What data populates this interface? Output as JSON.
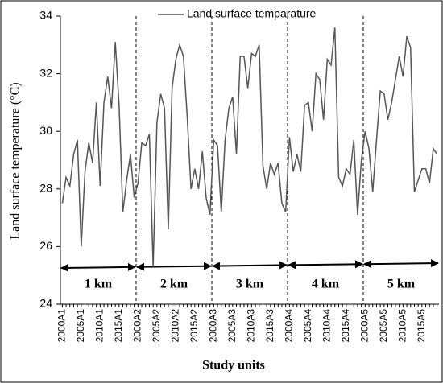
{
  "chart_data": {
    "type": "line",
    "x_label": "Study units",
    "y_label": "Land surface temperature (°C)",
    "categories": [
      "2000A1",
      null,
      null,
      null,
      null,
      "2005A1",
      null,
      null,
      null,
      null,
      "2010A1",
      null,
      null,
      null,
      null,
      "2015A1",
      null,
      null,
      null,
      null,
      "2000A2",
      null,
      null,
      null,
      null,
      "2005A2",
      null,
      null,
      null,
      null,
      "2010A2",
      null,
      null,
      null,
      null,
      "2015A2",
      null,
      null,
      null,
      null,
      "2000A3",
      null,
      null,
      null,
      null,
      "2005A3",
      null,
      null,
      null,
      null,
      "2010A3",
      null,
      null,
      null,
      null,
      "2015A3",
      null,
      null,
      null,
      null,
      "2000A4",
      null,
      null,
      null,
      null,
      "2005A4",
      null,
      null,
      null,
      null,
      "2010A4",
      null,
      null,
      null,
      null,
      "2015A4",
      null,
      null,
      null,
      null,
      "2000A5",
      null,
      null,
      null,
      null,
      "2005A5",
      null,
      null,
      null,
      null,
      "2010A5",
      null,
      null,
      null,
      null,
      "2015A5",
      null,
      null,
      null,
      null
    ],
    "series": [
      {
        "name": "Land surface temparature",
        "color": "#555555",
        "values": [
          27.5,
          28.4,
          28.1,
          29.2,
          29.7,
          26.0,
          28.6,
          29.6,
          28.9,
          31.0,
          28.1,
          31.0,
          31.9,
          30.8,
          33.1,
          30.9,
          27.2,
          28.3,
          29.2,
          27.7,
          28.2,
          29.6,
          29.5,
          29.9,
          25.3,
          30.3,
          31.3,
          30.8,
          26.6,
          31.5,
          32.5,
          33.0,
          32.6,
          30.5,
          28.0,
          28.7,
          28.0,
          29.3,
          27.7,
          27.1,
          29.7,
          29.5,
          27.2,
          29.7,
          30.8,
          31.2,
          29.2,
          32.6,
          32.6,
          31.5,
          32.7,
          32.6,
          33.0,
          28.8,
          28.0,
          28.9,
          28.5,
          28.9,
          27.5,
          27.2,
          29.8,
          28.6,
          29.2,
          28.6,
          30.9,
          31.0,
          30.0,
          32.0,
          31.8,
          30.4,
          32.5,
          32.3,
          33.6,
          28.4,
          28.1,
          28.7,
          28.5,
          29.7,
          27.1,
          29.0,
          30.0,
          29.4,
          27.9,
          29.7,
          31.4,
          31.3,
          30.4,
          31.0,
          31.8,
          32.6,
          31.9,
          33.3,
          32.9,
          27.9,
          28.3,
          28.7,
          28.7,
          28.2,
          29.4,
          29.2
        ]
      }
    ],
    "annotations": [
      "1 km",
      "2 km",
      "3 km",
      "4 km",
      "5 km"
    ],
    "ylim": [
      24,
      34
    ],
    "yticks": [
      24,
      26,
      28,
      30,
      32,
      34
    ],
    "legend": "top"
  }
}
